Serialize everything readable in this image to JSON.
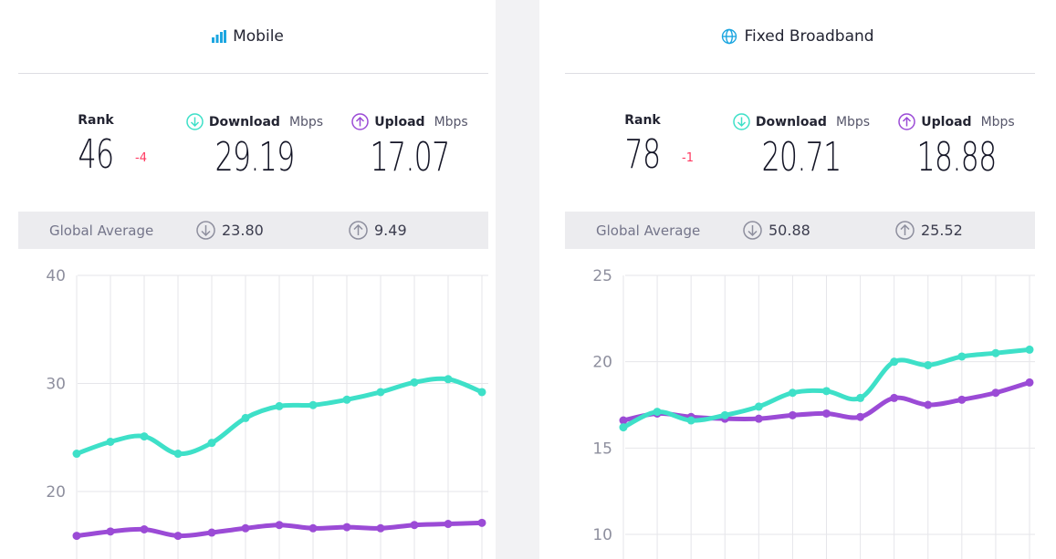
{
  "colors": {
    "download": "#3ee0c8",
    "upload": "#9b4bd6",
    "rank_change": "#ff3860",
    "grid": "#e6e6ea",
    "axis_text": "#8e8f9e",
    "mobile_icon": "#1ca6e0",
    "fixed_icon": "#1ca6e0"
  },
  "panels": {
    "mobile": {
      "title": "Mobile",
      "icon": "signal-bars-icon",
      "rank_label": "Rank",
      "rank_value": "46",
      "rank_change": "-4",
      "download_label": "Download",
      "download_unit": "Mbps",
      "download_value": "29.19",
      "upload_label": "Upload",
      "upload_unit": "Mbps",
      "upload_value": "17.07",
      "global_average_label": "Global Average",
      "global_download": "23.80",
      "global_upload": "9.49"
    },
    "fixed": {
      "title": "Fixed Broadband",
      "icon": "globe-icon",
      "rank_label": "Rank",
      "rank_value": "78",
      "rank_change": "-1",
      "download_label": "Download",
      "download_unit": "Mbps",
      "download_value": "20.71",
      "upload_label": "Upload",
      "upload_unit": "Mbps",
      "upload_value": "18.88",
      "global_average_label": "Global Average",
      "global_download": "50.88",
      "global_upload": "25.52"
    }
  },
  "chart_data": [
    {
      "type": "line",
      "panel": "mobile",
      "y_ticks": [
        "40",
        "30",
        "20"
      ],
      "ylim": [
        20,
        40
      ],
      "grid": true,
      "series": [
        {
          "values": [
            23.5,
            24.6,
            25.1,
            23.5,
            24.5,
            26.8,
            27.9,
            28.0,
            28.5,
            29.2,
            30.1,
            30.4,
            29.2
          ]
        },
        {
          "values": [
            15.9,
            16.3,
            16.5,
            15.9,
            16.2,
            16.6,
            16.9,
            16.6,
            16.7,
            16.6,
            16.9,
            17.0,
            17.1
          ]
        }
      ]
    },
    {
      "type": "line",
      "panel": "fixed",
      "y_ticks": [
        "25",
        "20",
        "15",
        "10"
      ],
      "ylim": [
        10,
        25
      ],
      "grid": true,
      "series": [
        {
          "values": [
            16.2,
            17.1,
            16.6,
            16.9,
            17.4,
            18.2,
            18.3,
            17.9,
            20.0,
            19.8,
            20.3,
            20.5,
            20.7
          ]
        },
        {
          "values": [
            16.6,
            17.0,
            16.8,
            16.7,
            16.7,
            16.9,
            17.0,
            16.8,
            17.9,
            17.5,
            17.8,
            18.2,
            18.8
          ]
        }
      ]
    }
  ]
}
